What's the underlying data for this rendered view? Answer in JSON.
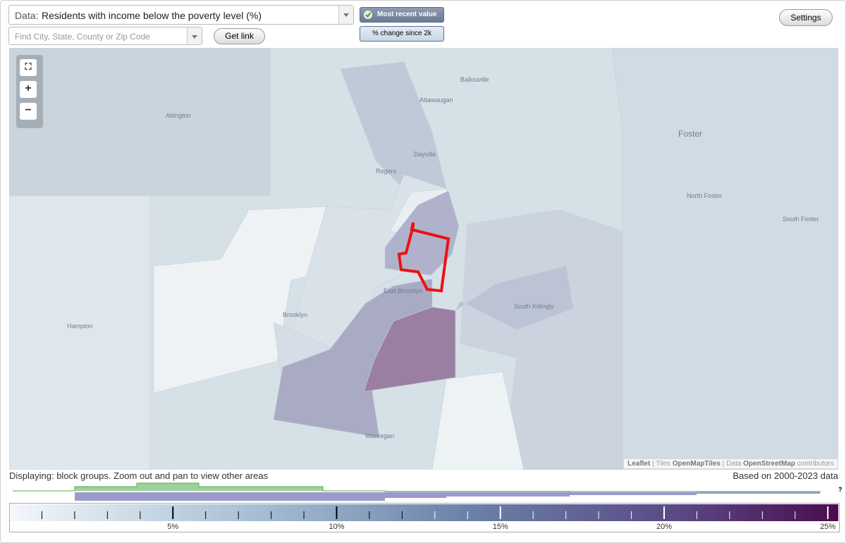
{
  "controls": {
    "data_label": "Data:",
    "data_value": "Residents with income below the poverty level (%)",
    "search_placeholder": "Find City, State, County or Zip Code",
    "get_link": "Get link",
    "most_recent": "Most recent value",
    "pct_change": "% change since 2k",
    "settings": "Settings"
  },
  "map": {
    "places": [
      "Ballouville",
      "Attawaugan",
      "Abington",
      "Dayville",
      "Rogers",
      "Foster",
      "North Foster",
      "South Foster",
      "Brooklyn",
      "East Brooklyn",
      "South Killingly",
      "Hampton",
      "Wauregan"
    ],
    "attribution": [
      "Leaflet",
      " | Tiles ",
      "OpenMapTiles",
      " | Data ",
      "OpenStreetMap",
      " contributors"
    ]
  },
  "footer": {
    "displaying": "Displaying: block groups. Zoom out and pan to view other areas",
    "based_on": "Based on 2000-2023 data",
    "help": "?"
  },
  "legend": {
    "tick_labels": [
      "5%",
      "10%",
      "15%",
      "20%",
      "25%"
    ]
  }
}
